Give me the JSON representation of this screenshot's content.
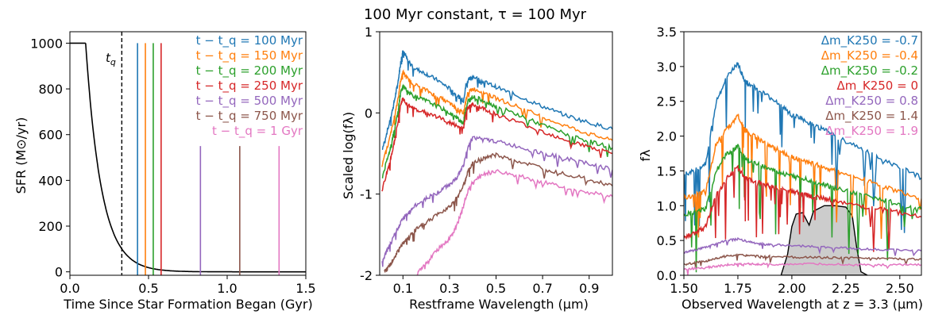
{
  "figure_title": "100 Myr constant, τ = 100 Myr",
  "chart_data": [
    {
      "type": "line",
      "panel": "sfh",
      "xlabel": "Time Since Star Formation Began (Gyr)",
      "ylabel": "SFR (M⊙/yr)",
      "xlim": [
        0.0,
        1.5
      ],
      "ylim": [
        -15,
        1050
      ],
      "xticks": [
        "0.0",
        "0.5",
        "1.0",
        "1.5"
      ],
      "yticks": [
        "0",
        "200",
        "400",
        "600",
        "800",
        "1000"
      ],
      "sfh": {
        "constant_sfr": 1000,
        "constant_until_gyr": 0.1,
        "tau_gyr": 0.1
      },
      "tq_marker": {
        "x": 0.33,
        "label": "t_q"
      },
      "quench_lines": [
        {
          "label": "t − t_q = 100 Myr",
          "x": 0.43,
          "top": 1000,
          "color": "#1f77b4"
        },
        {
          "label": "t − t_q = 150 Myr",
          "x": 0.48,
          "top": 1000,
          "color": "#ff7f0e"
        },
        {
          "label": "t − t_q = 200 Myr",
          "x": 0.53,
          "top": 1000,
          "color": "#2ca02c"
        },
        {
          "label": "t − t_q = 250 Myr",
          "x": 0.58,
          "top": 1000,
          "color": "#d62728"
        },
        {
          "label": "t − t_q = 500 Myr",
          "x": 0.83,
          "top": 550,
          "color": "#9467bd"
        },
        {
          "label": "t − t_q = 750 Myr",
          "x": 1.08,
          "top": 550,
          "color": "#8c564b"
        },
        {
          "label": "t − t_q = 1 Gyr",
          "x": 1.33,
          "top": 550,
          "color": "#e377c2"
        }
      ]
    },
    {
      "type": "line",
      "panel": "restframe",
      "xlabel": "Restframe Wavelength (μm)",
      "ylabel": "Scaled log(fλ)",
      "xlim": [
        0.0,
        1.0
      ],
      "ylim": [
        -2,
        1
      ],
      "xticks": [
        "0.1",
        "0.3",
        "0.5",
        "0.7",
        "0.9"
      ],
      "yticks": [
        "-2",
        "-1",
        "0",
        "1"
      ],
      "series": [
        {
          "name": "100 Myr",
          "color": "#1f77b4",
          "x": [
            0.01,
            0.04,
            0.06,
            0.08,
            0.09,
            0.1,
            0.12,
            0.15,
            0.2,
            0.25,
            0.3,
            0.33,
            0.36,
            0.37,
            0.38,
            0.4,
            0.45,
            0.5,
            0.6,
            0.7,
            0.8,
            0.9,
            1.0
          ],
          "y": [
            -0.45,
            -0.15,
            0.1,
            0.4,
            0.62,
            0.78,
            0.65,
            0.55,
            0.48,
            0.4,
            0.3,
            0.22,
            0.15,
            0.33,
            0.4,
            0.45,
            0.38,
            0.32,
            0.2,
            0.08,
            -0.03,
            -0.12,
            -0.2
          ]
        },
        {
          "name": "150 Myr",
          "color": "#ff7f0e",
          "x": [
            0.01,
            0.04,
            0.06,
            0.08,
            0.09,
            0.1,
            0.12,
            0.15,
            0.2,
            0.25,
            0.3,
            0.33,
            0.36,
            0.37,
            0.38,
            0.4,
            0.45,
            0.5,
            0.6,
            0.7,
            0.8,
            0.9,
            1.0
          ],
          "y": [
            -0.65,
            -0.35,
            -0.1,
            0.2,
            0.4,
            0.5,
            0.42,
            0.35,
            0.28,
            0.2,
            0.12,
            0.05,
            0.0,
            0.15,
            0.25,
            0.3,
            0.25,
            0.18,
            0.07,
            -0.05,
            -0.16,
            -0.26,
            -0.34
          ]
        },
        {
          "name": "200 Myr",
          "color": "#2ca02c",
          "x": [
            0.01,
            0.04,
            0.06,
            0.08,
            0.09,
            0.1,
            0.12,
            0.15,
            0.2,
            0.25,
            0.3,
            0.33,
            0.36,
            0.37,
            0.38,
            0.4,
            0.45,
            0.5,
            0.6,
            0.7,
            0.8,
            0.9,
            1.0
          ],
          "y": [
            -0.8,
            -0.5,
            -0.25,
            0.05,
            0.25,
            0.33,
            0.27,
            0.2,
            0.15,
            0.08,
            0.0,
            -0.06,
            -0.12,
            0.05,
            0.15,
            0.2,
            0.15,
            0.08,
            -0.03,
            -0.15,
            -0.26,
            -0.35,
            -0.43
          ]
        },
        {
          "name": "250 Myr",
          "color": "#d62728",
          "x": [
            0.01,
            0.04,
            0.06,
            0.08,
            0.09,
            0.1,
            0.12,
            0.15,
            0.2,
            0.25,
            0.3,
            0.33,
            0.36,
            0.37,
            0.38,
            0.4,
            0.45,
            0.5,
            0.6,
            0.7,
            0.8,
            0.9,
            1.0
          ],
          "y": [
            -0.95,
            -0.65,
            -0.4,
            -0.1,
            0.1,
            0.18,
            0.1,
            0.05,
            0.0,
            -0.05,
            -0.12,
            -0.16,
            -0.2,
            0.0,
            0.07,
            0.1,
            0.05,
            -0.02,
            -0.12,
            -0.23,
            -0.33,
            -0.42,
            -0.5
          ]
        },
        {
          "name": "500 Myr",
          "color": "#9467bd",
          "x": [
            0.01,
            0.03,
            0.05,
            0.08,
            0.1,
            0.12,
            0.15,
            0.2,
            0.25,
            0.3,
            0.33,
            0.36,
            0.38,
            0.4,
            0.45,
            0.5,
            0.6,
            0.7,
            0.8,
            0.9,
            1.0
          ],
          "y": [
            -1.85,
            -1.7,
            -1.6,
            -1.4,
            -1.3,
            -1.25,
            -1.15,
            -1.05,
            -0.98,
            -0.88,
            -0.8,
            -0.65,
            -0.4,
            -0.3,
            -0.33,
            -0.35,
            -0.42,
            -0.5,
            -0.56,
            -0.63,
            -0.7
          ]
        },
        {
          "name": "750 Myr",
          "color": "#8c564b",
          "x": [
            0.02,
            0.04,
            0.06,
            0.08,
            0.1,
            0.12,
            0.15,
            0.2,
            0.25,
            0.3,
            0.33,
            0.36,
            0.38,
            0.4,
            0.45,
            0.5,
            0.6,
            0.7,
            0.8,
            0.9,
            1.0
          ],
          "y": [
            -1.95,
            -1.9,
            -1.8,
            -1.7,
            -1.6,
            -1.55,
            -1.45,
            -1.35,
            -1.25,
            -1.15,
            -1.05,
            -0.9,
            -0.72,
            -0.62,
            -0.55,
            -0.52,
            -0.6,
            -0.68,
            -0.75,
            -0.82,
            -0.9
          ]
        },
        {
          "name": "1 Gyr",
          "color": "#e377c2",
          "x": [
            0.16,
            0.2,
            0.25,
            0.3,
            0.33,
            0.36,
            0.38,
            0.4,
            0.45,
            0.5,
            0.6,
            0.7,
            0.8,
            0.9,
            1.0
          ],
          "y": [
            -1.98,
            -1.85,
            -1.68,
            -1.55,
            -1.4,
            -1.15,
            -0.95,
            -0.85,
            -0.75,
            -0.72,
            -0.78,
            -0.85,
            -0.92,
            -0.98,
            -1.03
          ]
        }
      ]
    },
    {
      "type": "line",
      "panel": "observed",
      "xlabel": "Observed Wavelength at z = 3.3 (μm)",
      "ylabel": "fλ",
      "xlim": [
        1.5,
        2.6
      ],
      "ylim": [
        0.0,
        3.5
      ],
      "xticks": [
        "1.50",
        "1.75",
        "2.00",
        "2.25",
        "2.50"
      ],
      "yticks": [
        "0.0",
        "0.5",
        "1.0",
        "1.5",
        "2.0",
        "2.5",
        "3.0",
        "3.5"
      ],
      "filter_label": "K250",
      "filter_curve": {
        "x": [
          1.95,
          1.98,
          2.0,
          2.02,
          2.05,
          2.08,
          2.1,
          2.15,
          2.2,
          2.25,
          2.28,
          2.3,
          2.32,
          2.35
        ],
        "y": [
          0.0,
          0.3,
          0.7,
          0.88,
          0.9,
          0.72,
          0.92,
          1.0,
          1.0,
          0.98,
          0.85,
          0.4,
          0.05,
          0.0
        ]
      },
      "series": [
        {
          "name": "Δm_K250 = -0.7",
          "color": "#1f77b4",
          "x": [
            1.5,
            1.55,
            1.6,
            1.65,
            1.7,
            1.75,
            1.78,
            1.8,
            1.85,
            1.9,
            1.95,
            2.0,
            2.05,
            2.1,
            2.15,
            2.2,
            2.3,
            2.4,
            2.5,
            2.6
          ],
          "y": [
            1.45,
            1.5,
            1.6,
            2.5,
            2.85,
            3.05,
            2.8,
            2.75,
            2.65,
            2.55,
            2.45,
            2.3,
            2.25,
            2.15,
            2.1,
            2.0,
            1.85,
            1.7,
            1.55,
            1.4
          ]
        },
        {
          "name": "Δm_K250 = -0.4",
          "color": "#ff7f0e",
          "x": [
            1.5,
            1.55,
            1.6,
            1.65,
            1.7,
            1.75,
            1.78,
            1.8,
            1.85,
            1.9,
            1.95,
            2.0,
            2.05,
            2.1,
            2.15,
            2.2,
            2.3,
            2.4,
            2.5,
            2.6
          ],
          "y": [
            1.12,
            1.15,
            1.2,
            1.9,
            2.1,
            2.3,
            2.1,
            2.05,
            1.95,
            1.85,
            1.78,
            1.7,
            1.65,
            1.6,
            1.55,
            1.5,
            1.4,
            1.3,
            1.2,
            1.1
          ]
        },
        {
          "name": "Δm_K250 = -0.2",
          "color": "#2ca02c",
          "x": [
            1.5,
            1.55,
            1.6,
            1.65,
            1.7,
            1.75,
            1.78,
            1.8,
            1.85,
            1.9,
            1.95,
            2.0,
            2.05,
            2.1,
            2.15,
            2.2,
            2.3,
            2.4,
            2.5,
            2.6
          ],
          "y": [
            0.88,
            0.9,
            0.95,
            1.5,
            1.75,
            1.85,
            1.7,
            1.65,
            1.58,
            1.52,
            1.47,
            1.42,
            1.4,
            1.35,
            1.3,
            1.25,
            1.17,
            1.1,
            1.02,
            0.95
          ]
        },
        {
          "name": "Δm_K250 = 0",
          "color": "#d62728",
          "x": [
            1.5,
            1.55,
            1.6,
            1.65,
            1.7,
            1.75,
            1.78,
            1.8,
            1.85,
            1.9,
            1.95,
            2.0,
            2.05,
            2.1,
            2.15,
            2.2,
            2.3,
            2.4,
            2.5,
            2.6
          ],
          "y": [
            0.55,
            0.6,
            0.7,
            1.15,
            1.4,
            1.55,
            1.42,
            1.38,
            1.33,
            1.28,
            1.24,
            1.2,
            1.17,
            1.13,
            1.1,
            1.07,
            1.0,
            0.95,
            0.9,
            0.84
          ]
        },
        {
          "name": "Δm_K250 = 0.8",
          "color": "#9467bd",
          "x": [
            1.5,
            1.55,
            1.6,
            1.65,
            1.7,
            1.75,
            1.8,
            1.85,
            1.9,
            2.0,
            2.1,
            2.2,
            2.3,
            2.4,
            2.5,
            2.6
          ],
          "y": [
            0.33,
            0.36,
            0.4,
            0.45,
            0.5,
            0.52,
            0.48,
            0.45,
            0.44,
            0.43,
            0.41,
            0.4,
            0.38,
            0.37,
            0.36,
            0.35
          ]
        },
        {
          "name": "Δm_K250 = 1.4",
          "color": "#8c564b",
          "x": [
            1.5,
            1.55,
            1.6,
            1.65,
            1.7,
            1.75,
            1.8,
            1.85,
            1.9,
            2.0,
            2.1,
            2.2,
            2.3,
            2.4,
            2.5,
            2.6
          ],
          "y": [
            0.15,
            0.18,
            0.2,
            0.24,
            0.28,
            0.29,
            0.28,
            0.27,
            0.27,
            0.26,
            0.26,
            0.25,
            0.25,
            0.24,
            0.24,
            0.23
          ]
        },
        {
          "name": "Δm_K250 = 1.9",
          "color": "#e377c2",
          "x": [
            1.5,
            1.55,
            1.6,
            1.65,
            1.7,
            1.75,
            1.8,
            1.85,
            1.9,
            2.0,
            2.1,
            2.2,
            2.3,
            2.4,
            2.5,
            2.6
          ],
          "y": [
            0.08,
            0.1,
            0.11,
            0.13,
            0.15,
            0.16,
            0.16,
            0.16,
            0.16,
            0.16,
            0.16,
            0.16,
            0.15,
            0.15,
            0.15,
            0.15
          ]
        }
      ]
    }
  ]
}
